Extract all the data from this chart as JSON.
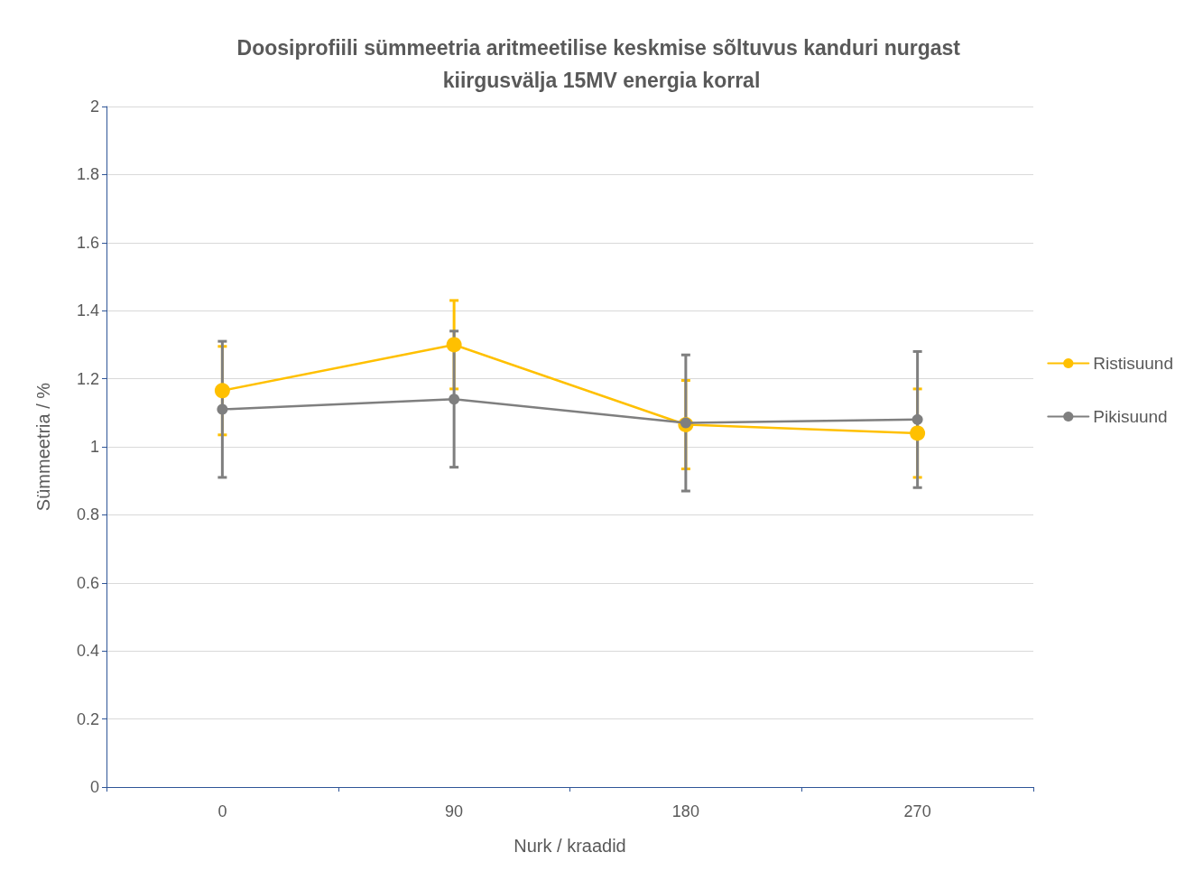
{
  "chart_data": {
    "type": "line",
    "title": "Doosiprofiili sümmeetria aritmeetilise keskmise sõltuvus kanduri nurgast kiirgusvälja 15MV energia korral",
    "xlabel": "Nurk / kraadid",
    "ylabel": "Sümmeetria / %",
    "categories": [
      "0",
      "90",
      "180",
      "270"
    ],
    "series": [
      {
        "name": "Ristisuund",
        "color": "#ffc000",
        "values": [
          1.165,
          1.3,
          1.065,
          1.04
        ],
        "errors": [
          0.13,
          0.13,
          0.13,
          0.13
        ]
      },
      {
        "name": "Pikisuund",
        "color": "#7f7f7f",
        "values": [
          1.11,
          1.14,
          1.07,
          1.08
        ],
        "errors": [
          0.2,
          0.2,
          0.2,
          0.2
        ]
      }
    ],
    "ylim": [
      0,
      2
    ],
    "yticks": [
      0,
      0.2,
      0.4,
      0.6,
      0.8,
      1,
      1.2,
      1.4,
      1.6,
      1.8,
      2
    ],
    "grid": "y",
    "legend": "right",
    "marker": "circle",
    "line_style": "solid"
  }
}
